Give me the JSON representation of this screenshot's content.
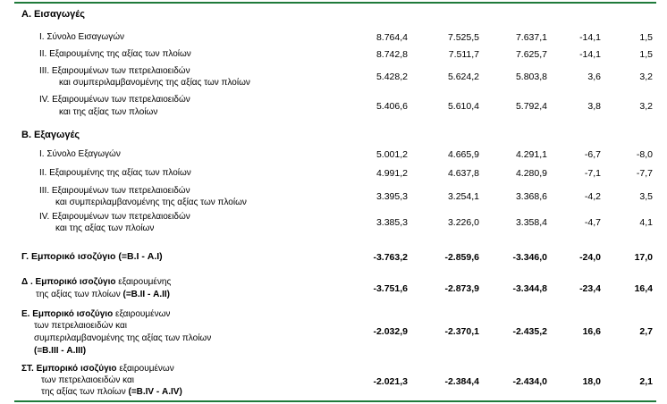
{
  "sections": {
    "A": "Α. Εισαγωγές",
    "B": "Β. Εξαγωγές"
  },
  "rows": [
    {
      "label": [
        "I.   Σύνολο Εισαγωγών"
      ],
      "values": [
        "8.764,4",
        "7.525,5",
        "7.637,1",
        "-14,1",
        "1,5"
      ]
    },
    {
      "label": [
        "II.  Εξαιρουμένης της αξίας των πλοίων"
      ],
      "values": [
        "8.742,8",
        "7.511,7",
        "7.625,7",
        "-14,1",
        "1,5"
      ]
    },
    {
      "label": [
        "III. Εξαιρουμένων των πετρελαιοειδών",
        "και συμπεριλαμβανομένης της αξίας των πλοίων"
      ],
      "values": [
        "5.428,2",
        "5.624,2",
        "5.803,8",
        "3,6",
        "3,2"
      ]
    },
    {
      "label": [
        "IV. Εξαιρουμένων των πετρελαιοειδών",
        "και  της αξίας των πλοίων"
      ],
      "values": [
        "5.406,6",
        "5.610,4",
        "5.792,4",
        "3,8",
        "3,2"
      ]
    },
    {
      "label": [
        "I.   Σύνολο Εξαγωγών"
      ],
      "values": [
        "5.001,2",
        "4.665,9",
        "4.291,1",
        "-6,7",
        "-8,0"
      ]
    },
    {
      "label": [
        "II.  Εξαιρουμένης της αξίας των πλοίων"
      ],
      "values": [
        "4.991,2",
        "4.637,8",
        "4.280,9",
        "-7,1",
        "-7,7"
      ]
    },
    {
      "label": [
        "III. Εξαιρουμένων των πετρελαιοειδών",
        "και συμπεριλαμβανομένης της αξίας των πλοίων"
      ],
      "values": [
        "3.395,3",
        "3.254,1",
        "3.368,6",
        "-4,2",
        "3,5"
      ]
    },
    {
      "label": [
        "IV. Εξαιρουμένων των πετρελαιοειδών",
        "και της αξίας των πλοίων"
      ],
      "values": [
        "3.385,3",
        "3.226,0",
        "3.358,4",
        "-4,7",
        "4,1"
      ]
    }
  ],
  "balances": [
    {
      "l1_bold": "Γ. Εμπορικό ισοζύγιο (=Β.I - Α.I)",
      "values": [
        "-3.763,2",
        "-2.859,6",
        "-3.346,0",
        "-24,0",
        "17,0"
      ]
    },
    {
      "l1_bold": "Δ . Εμπορικό ισοζύγιο",
      "l1_rest": " εξαιρουμένης",
      "l2": "της αξίας των πλοίων ",
      "l2_bold": "(=Β.II - Α.II)",
      "values": [
        "-3.751,6",
        "-2.873,9",
        "-3.344,8",
        "-23,4",
        "16,4"
      ]
    },
    {
      "l1_bold": "Ε. Εμπορικό ισοζύγιο",
      "l1_rest": " εξαιρουμένων",
      "l2": "των πετρελαιοειδών και",
      "l3": "συμπεριλαμβανομένης της αξίας των πλοίων",
      "l4_bold": "(=Β.III - Α.III)",
      "values": [
        "-2.032,9",
        "-2.370,1",
        "-2.435,2",
        "16,6",
        "2,7"
      ]
    },
    {
      "l1_bold": "ΣΤ. Εμπορικό ισοζύγιο",
      "l1_rest": " εξαιρουμένων",
      "l2": "των πετρελαιοειδών και",
      "l3": "της αξίας των πλοίων ",
      "l3_bold": "(=Β.IV - Α.IV)",
      "values": [
        "-2.021,3",
        "-2.384,4",
        "-2.434,0",
        "18,0",
        "2,1"
      ]
    }
  ]
}
